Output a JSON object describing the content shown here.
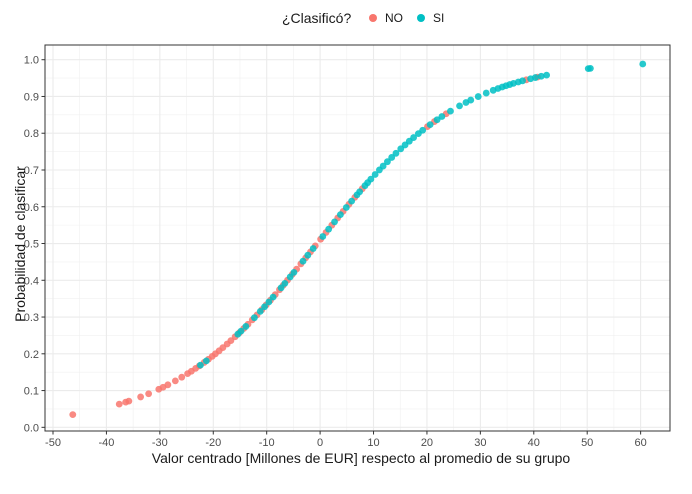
{
  "chart_data": {
    "type": "scatter",
    "xlabel": "Valor centrado [Millones de EUR] respecto al promedio de su grupo",
    "ylabel": "Probabilidad de clasificar",
    "xlim": [
      -51.5,
      65.5
    ],
    "ylim": [
      -0.01,
      1.04
    ],
    "x_ticks": [
      -50,
      -40,
      -30,
      -20,
      -10,
      0,
      10,
      20,
      30,
      40,
      50,
      60
    ],
    "y_ticks": [
      0.0,
      0.1,
      0.2,
      0.3,
      0.4,
      0.5,
      0.6,
      0.7,
      0.8,
      0.9,
      1.0
    ],
    "x_tick_labels": [
      "-50",
      "-40",
      "-30",
      "-20",
      "-10",
      "0",
      "10",
      "20",
      "30",
      "40",
      "50",
      "60"
    ],
    "y_tick_labels": [
      "0.0",
      "0.1",
      "0.2",
      "0.3",
      "0.4",
      "0.5",
      "0.6",
      "0.7",
      "0.8",
      "0.9",
      "1.0"
    ],
    "grid": true,
    "legend": {
      "title": "¿Clasificó?",
      "position": "top"
    },
    "curve": {
      "form": "logistic",
      "intercept": 0.04,
      "slope": 0.0728
    },
    "series": [
      {
        "name": "NO",
        "color": "#F8766D",
        "x": [
          -46.3,
          -37.6,
          -36.4,
          -35.8,
          -33.6,
          -32.1,
          -30.2,
          -29.4,
          -28.5,
          -27.1,
          -25.9,
          -24.8,
          -24.1,
          -23.3,
          -22.6,
          -21.7,
          -20.9,
          -20.2,
          -19.6,
          -18.9,
          -18.2,
          -17.4,
          -16.7,
          -15.9,
          -15.1,
          -14.3,
          -13.5,
          -12.7,
          -11.8,
          -10.9,
          -10.1,
          -9.3,
          -8.4,
          -7.6,
          -6.9,
          -6.1,
          -5.2,
          -4.4,
          -3.6,
          -2.7,
          -1.8,
          -0.9,
          0.1,
          1.1,
          2.2,
          3.3,
          4.3,
          5.4,
          6.5,
          7.9,
          20.1,
          21.4,
          23.6,
          38.6,
          40.7
        ]
      },
      {
        "name": "SI",
        "color": "#00BFC4",
        "x": [
          -22.4,
          -21.3,
          -15.4,
          -14.8,
          -13.9,
          -12.3,
          -11.2,
          -10.4,
          -9.6,
          -8.8,
          -7.3,
          -6.6,
          -5.6,
          -4.9,
          -3.2,
          -2.3,
          -1.3,
          0.5,
          1.6,
          2.7,
          3.8,
          4.9,
          5.9,
          6.9,
          7.4,
          8.4,
          8.9,
          9.5,
          10.3,
          11.1,
          11.8,
          12.6,
          13.4,
          14.2,
          15.1,
          15.9,
          16.7,
          17.5,
          18.4,
          19.2,
          20.6,
          21.9,
          22.8,
          24.4,
          26.1,
          27.3,
          28.2,
          29.6,
          31.1,
          32.4,
          33.3,
          34.1,
          34.8,
          35.5,
          36.2,
          37.1,
          37.9,
          39.4,
          40.3,
          41.4,
          42.4,
          50.2,
          50.6,
          60.4
        ]
      }
    ]
  }
}
